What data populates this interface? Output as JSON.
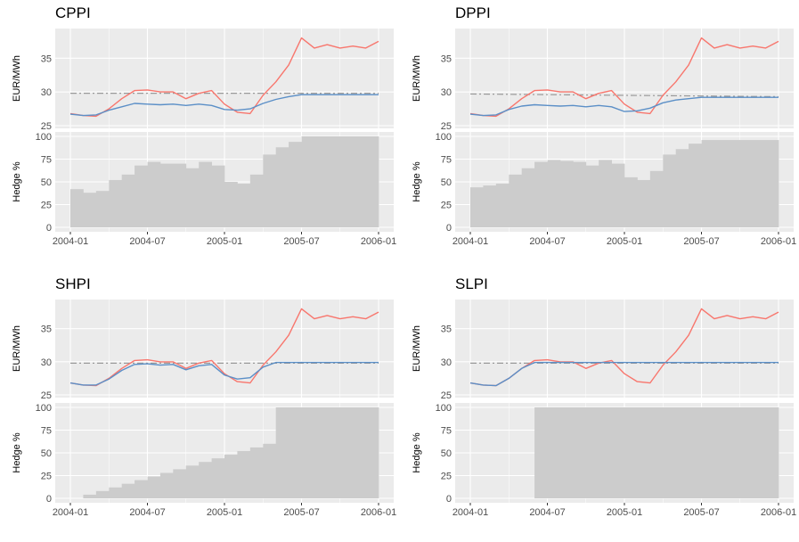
{
  "chart_data": [
    {
      "type": "line",
      "title": "CPPI",
      "ylabel_price": "EUR/MWh",
      "ylabel_hedge": "Hedge %",
      "x_ticks": [
        "2004-01",
        "2004-07",
        "2005-01",
        "2005-07",
        "2006-01"
      ],
      "price_ylim": [
        25,
        39
      ],
      "price_yticks": [
        "25",
        "30",
        "35"
      ],
      "hedge_ylim": [
        0,
        100
      ],
      "hedge_yticks": [
        "0",
        "25",
        "50",
        "75",
        "100"
      ],
      "x_range": [
        "2004-01",
        "2006-01"
      ],
      "series_colors": {
        "market": "#F8766D",
        "portfolio": "#5B8FC7",
        "cap": "#999999",
        "hedge": "#CCCCCC"
      },
      "series": [
        {
          "role": "market",
          "x": [
            "2004-01",
            "2004-02",
            "2004-03",
            "2004-04",
            "2004-05",
            "2004-06",
            "2004-07",
            "2004-08",
            "2004-09",
            "2004-10",
            "2004-11",
            "2004-12",
            "2005-01",
            "2005-02",
            "2005-03",
            "2005-04",
            "2005-05",
            "2005-06",
            "2005-07",
            "2005-08",
            "2005-09",
            "2005-10",
            "2005-11",
            "2005-12",
            "2006-01"
          ],
          "values": [
            26.8,
            26.5,
            26.4,
            27.5,
            29.0,
            30.2,
            30.3,
            30.0,
            30.0,
            29.0,
            29.8,
            30.2,
            28.2,
            27.0,
            26.8,
            29.5,
            31.5,
            34.0,
            38.0,
            36.5,
            37.0,
            36.5,
            36.8,
            36.5,
            37.5
          ]
        },
        {
          "role": "portfolio",
          "x": [
            "2004-01",
            "2004-02",
            "2004-03",
            "2004-04",
            "2004-05",
            "2004-06",
            "2004-07",
            "2004-08",
            "2004-09",
            "2004-10",
            "2004-11",
            "2004-12",
            "2005-01",
            "2005-02",
            "2005-03",
            "2005-04",
            "2005-05",
            "2005-06",
            "2005-07",
            "2005-08",
            "2005-09",
            "2005-10",
            "2005-11",
            "2005-12",
            "2006-01"
          ],
          "values": [
            26.7,
            26.5,
            26.6,
            27.3,
            27.8,
            28.3,
            28.2,
            28.1,
            28.2,
            28.0,
            28.2,
            28.0,
            27.4,
            27.3,
            27.5,
            28.3,
            28.9,
            29.3,
            29.6,
            29.6,
            29.6,
            29.6,
            29.6,
            29.6,
            29.6
          ]
        },
        {
          "role": "cap",
          "x": [
            "2004-01",
            "2006-01"
          ],
          "values": [
            29.8,
            29.8
          ]
        },
        {
          "role": "hedge",
          "x": [
            "2004-01",
            "2004-02",
            "2004-03",
            "2004-04",
            "2004-05",
            "2004-06",
            "2004-07",
            "2004-08",
            "2004-09",
            "2004-10",
            "2004-11",
            "2004-12",
            "2005-01",
            "2005-02",
            "2005-03",
            "2005-04",
            "2005-05",
            "2005-06",
            "2005-07",
            "2005-08",
            "2005-09",
            "2005-10",
            "2005-11",
            "2005-12",
            "2006-01"
          ],
          "values": [
            42,
            38,
            40,
            52,
            58,
            68,
            72,
            70,
            70,
            65,
            72,
            68,
            50,
            48,
            58,
            80,
            88,
            94,
            100,
            100,
            100,
            100,
            100,
            100,
            100
          ]
        }
      ]
    },
    {
      "type": "line",
      "title": "DPPI",
      "ylabel_price": "EUR/MWh",
      "ylabel_hedge": "Hedge %",
      "x_ticks": [
        "2004-01",
        "2004-07",
        "2005-01",
        "2005-07",
        "2006-01"
      ],
      "price_ylim": [
        25,
        39
      ],
      "price_yticks": [
        "25",
        "30",
        "35"
      ],
      "hedge_ylim": [
        0,
        100
      ],
      "hedge_yticks": [
        "0",
        "25",
        "50",
        "75",
        "100"
      ],
      "x_range": [
        "2004-01",
        "2006-01"
      ],
      "series_colors": {
        "market": "#F8766D",
        "portfolio": "#5B8FC7",
        "cap": "#999999",
        "hedge": "#CCCCCC"
      },
      "series": [
        {
          "role": "market",
          "x": [
            "2004-01",
            "2004-02",
            "2004-03",
            "2004-04",
            "2004-05",
            "2004-06",
            "2004-07",
            "2004-08",
            "2004-09",
            "2004-10",
            "2004-11",
            "2004-12",
            "2005-01",
            "2005-02",
            "2005-03",
            "2005-04",
            "2005-05",
            "2005-06",
            "2005-07",
            "2005-08",
            "2005-09",
            "2005-10",
            "2005-11",
            "2005-12",
            "2006-01"
          ],
          "values": [
            26.8,
            26.5,
            26.4,
            27.5,
            29.0,
            30.2,
            30.3,
            30.0,
            30.0,
            29.0,
            29.8,
            30.2,
            28.2,
            27.0,
            26.8,
            29.5,
            31.5,
            34.0,
            38.0,
            36.5,
            37.0,
            36.5,
            36.8,
            36.5,
            37.5
          ]
        },
        {
          "role": "portfolio",
          "x": [
            "2004-01",
            "2004-02",
            "2004-03",
            "2004-04",
            "2004-05",
            "2004-06",
            "2004-07",
            "2004-08",
            "2004-09",
            "2004-10",
            "2004-11",
            "2004-12",
            "2005-01",
            "2005-02",
            "2005-03",
            "2005-04",
            "2005-05",
            "2005-06",
            "2005-07",
            "2005-08",
            "2005-09",
            "2005-10",
            "2005-11",
            "2005-12",
            "2006-01"
          ],
          "values": [
            26.7,
            26.5,
            26.6,
            27.4,
            27.9,
            28.1,
            28.0,
            27.9,
            28.0,
            27.8,
            28.0,
            27.8,
            27.1,
            27.2,
            27.6,
            28.4,
            28.8,
            29.0,
            29.2,
            29.2,
            29.2,
            29.2,
            29.2,
            29.2,
            29.2
          ]
        },
        {
          "role": "cap",
          "x": [
            "2004-01",
            "2006-01"
          ],
          "values": [
            29.7,
            29.3
          ]
        },
        {
          "role": "hedge",
          "x": [
            "2004-01",
            "2004-02",
            "2004-03",
            "2004-04",
            "2004-05",
            "2004-06",
            "2004-07",
            "2004-08",
            "2004-09",
            "2004-10",
            "2004-11",
            "2004-12",
            "2005-01",
            "2005-02",
            "2005-03",
            "2005-04",
            "2005-05",
            "2005-06",
            "2005-07",
            "2005-08",
            "2005-09",
            "2005-10",
            "2005-11",
            "2005-12",
            "2006-01"
          ],
          "values": [
            44,
            46,
            48,
            58,
            65,
            72,
            74,
            73,
            72,
            68,
            74,
            70,
            55,
            52,
            62,
            80,
            86,
            92,
            96,
            96,
            96,
            96,
            96,
            96,
            96
          ]
        }
      ]
    },
    {
      "type": "line",
      "title": "SHPI",
      "ylabel_price": "EUR/MWh",
      "ylabel_hedge": "Hedge %",
      "x_ticks": [
        "2004-01",
        "2004-07",
        "2005-01",
        "2005-07",
        "2006-01"
      ],
      "price_ylim": [
        25,
        39
      ],
      "price_yticks": [
        "25",
        "30",
        "35"
      ],
      "hedge_ylim": [
        0,
        100
      ],
      "hedge_yticks": [
        "0",
        "25",
        "50",
        "75",
        "100"
      ],
      "x_range": [
        "2004-01",
        "2006-01"
      ],
      "series_colors": {
        "market": "#F8766D",
        "portfolio": "#5B8FC7",
        "cap": "#999999",
        "hedge": "#CCCCCC"
      },
      "series": [
        {
          "role": "market",
          "x": [
            "2004-01",
            "2004-02",
            "2004-03",
            "2004-04",
            "2004-05",
            "2004-06",
            "2004-07",
            "2004-08",
            "2004-09",
            "2004-10",
            "2004-11",
            "2004-12",
            "2005-01",
            "2005-02",
            "2005-03",
            "2005-04",
            "2005-05",
            "2005-06",
            "2005-07",
            "2005-08",
            "2005-09",
            "2005-10",
            "2005-11",
            "2005-12",
            "2006-01"
          ],
          "values": [
            26.8,
            26.5,
            26.4,
            27.5,
            29.0,
            30.2,
            30.3,
            30.0,
            30.0,
            29.0,
            29.8,
            30.2,
            28.2,
            27.0,
            26.8,
            29.5,
            31.5,
            34.0,
            38.0,
            36.5,
            37.0,
            36.5,
            36.8,
            36.5,
            37.5
          ]
        },
        {
          "role": "portfolio",
          "x": [
            "2004-01",
            "2004-02",
            "2004-03",
            "2004-04",
            "2004-05",
            "2004-06",
            "2004-07",
            "2004-08",
            "2004-09",
            "2004-10",
            "2004-11",
            "2004-12",
            "2005-01",
            "2005-02",
            "2005-03",
            "2005-04",
            "2005-05",
            "2005-06",
            "2005-07",
            "2005-08",
            "2005-09",
            "2005-10",
            "2005-11",
            "2005-12",
            "2006-01"
          ],
          "values": [
            26.8,
            26.5,
            26.5,
            27.4,
            28.7,
            29.6,
            29.7,
            29.5,
            29.6,
            28.8,
            29.4,
            29.6,
            28.0,
            27.4,
            27.6,
            29.2,
            29.9,
            29.9,
            29.9,
            29.9,
            29.9,
            29.9,
            29.9,
            29.9,
            29.9
          ]
        },
        {
          "role": "cap",
          "x": [
            "2004-01",
            "2006-01"
          ],
          "values": [
            29.8,
            29.8
          ]
        },
        {
          "role": "hedge",
          "x": [
            "2004-01",
            "2004-02",
            "2004-03",
            "2004-04",
            "2004-05",
            "2004-06",
            "2004-07",
            "2004-08",
            "2004-09",
            "2004-10",
            "2004-11",
            "2004-12",
            "2005-01",
            "2005-02",
            "2005-03",
            "2005-04",
            "2005-05",
            "2005-06",
            "2005-07",
            "2005-08",
            "2005-09",
            "2005-10",
            "2005-11",
            "2005-12",
            "2006-01"
          ],
          "values": [
            0,
            4,
            8,
            12,
            16,
            20,
            24,
            28,
            32,
            36,
            40,
            44,
            48,
            52,
            56,
            60,
            100,
            100,
            100,
            100,
            100,
            100,
            100,
            100,
            100
          ]
        }
      ]
    },
    {
      "type": "line",
      "title": "SLPI",
      "ylabel_price": "EUR/MWh",
      "ylabel_hedge": "Hedge %",
      "x_ticks": [
        "2004-01",
        "2004-07",
        "2005-01",
        "2005-07",
        "2006-01"
      ],
      "price_ylim": [
        25,
        39
      ],
      "price_yticks": [
        "25",
        "30",
        "35"
      ],
      "hedge_ylim": [
        0,
        100
      ],
      "hedge_yticks": [
        "0",
        "25",
        "50",
        "75",
        "100"
      ],
      "x_range": [
        "2004-01",
        "2006-01"
      ],
      "series_colors": {
        "market": "#F8766D",
        "portfolio": "#5B8FC7",
        "cap": "#999999",
        "hedge": "#CCCCCC"
      },
      "series": [
        {
          "role": "market",
          "x": [
            "2004-01",
            "2004-02",
            "2004-03",
            "2004-04",
            "2004-05",
            "2004-06",
            "2004-07",
            "2004-08",
            "2004-09",
            "2004-10",
            "2004-11",
            "2004-12",
            "2005-01",
            "2005-02",
            "2005-03",
            "2005-04",
            "2005-05",
            "2005-06",
            "2005-07",
            "2005-08",
            "2005-09",
            "2005-10",
            "2005-11",
            "2005-12",
            "2006-01"
          ],
          "values": [
            26.8,
            26.5,
            26.4,
            27.5,
            29.0,
            30.2,
            30.3,
            30.0,
            30.0,
            29.0,
            29.8,
            30.2,
            28.2,
            27.0,
            26.8,
            29.5,
            31.5,
            34.0,
            38.0,
            36.5,
            37.0,
            36.5,
            36.8,
            36.5,
            37.5
          ]
        },
        {
          "role": "portfolio",
          "x": [
            "2004-01",
            "2004-02",
            "2004-03",
            "2004-04",
            "2004-05",
            "2004-06",
            "2004-07",
            "2004-08",
            "2004-09",
            "2004-10",
            "2004-11",
            "2004-12",
            "2005-01",
            "2005-02",
            "2005-03",
            "2005-04",
            "2005-05",
            "2005-06",
            "2005-07",
            "2005-08",
            "2005-09",
            "2005-10",
            "2005-11",
            "2005-12",
            "2006-01"
          ],
          "values": [
            26.8,
            26.5,
            26.4,
            27.5,
            29.0,
            29.9,
            29.9,
            29.9,
            29.9,
            29.9,
            29.9,
            29.9,
            29.9,
            29.9,
            29.9,
            29.9,
            29.9,
            29.9,
            29.9,
            29.9,
            29.9,
            29.9,
            29.9,
            29.9,
            29.9
          ]
        },
        {
          "role": "cap",
          "x": [
            "2004-01",
            "2006-01"
          ],
          "values": [
            29.8,
            29.8
          ]
        },
        {
          "role": "hedge",
          "x": [
            "2004-01",
            "2004-02",
            "2004-03",
            "2004-04",
            "2004-05",
            "2004-06",
            "2004-07",
            "2004-08",
            "2004-09",
            "2004-10",
            "2004-11",
            "2004-12",
            "2005-01",
            "2005-02",
            "2005-03",
            "2005-04",
            "2005-05",
            "2005-06",
            "2005-07",
            "2005-08",
            "2005-09",
            "2005-10",
            "2005-11",
            "2005-12",
            "2006-01"
          ],
          "values": [
            0,
            0,
            0,
            0,
            0,
            100,
            100,
            100,
            100,
            100,
            100,
            100,
            100,
            100,
            100,
            100,
            100,
            100,
            100,
            100,
            100,
            100,
            100,
            100,
            100
          ]
        }
      ]
    }
  ]
}
